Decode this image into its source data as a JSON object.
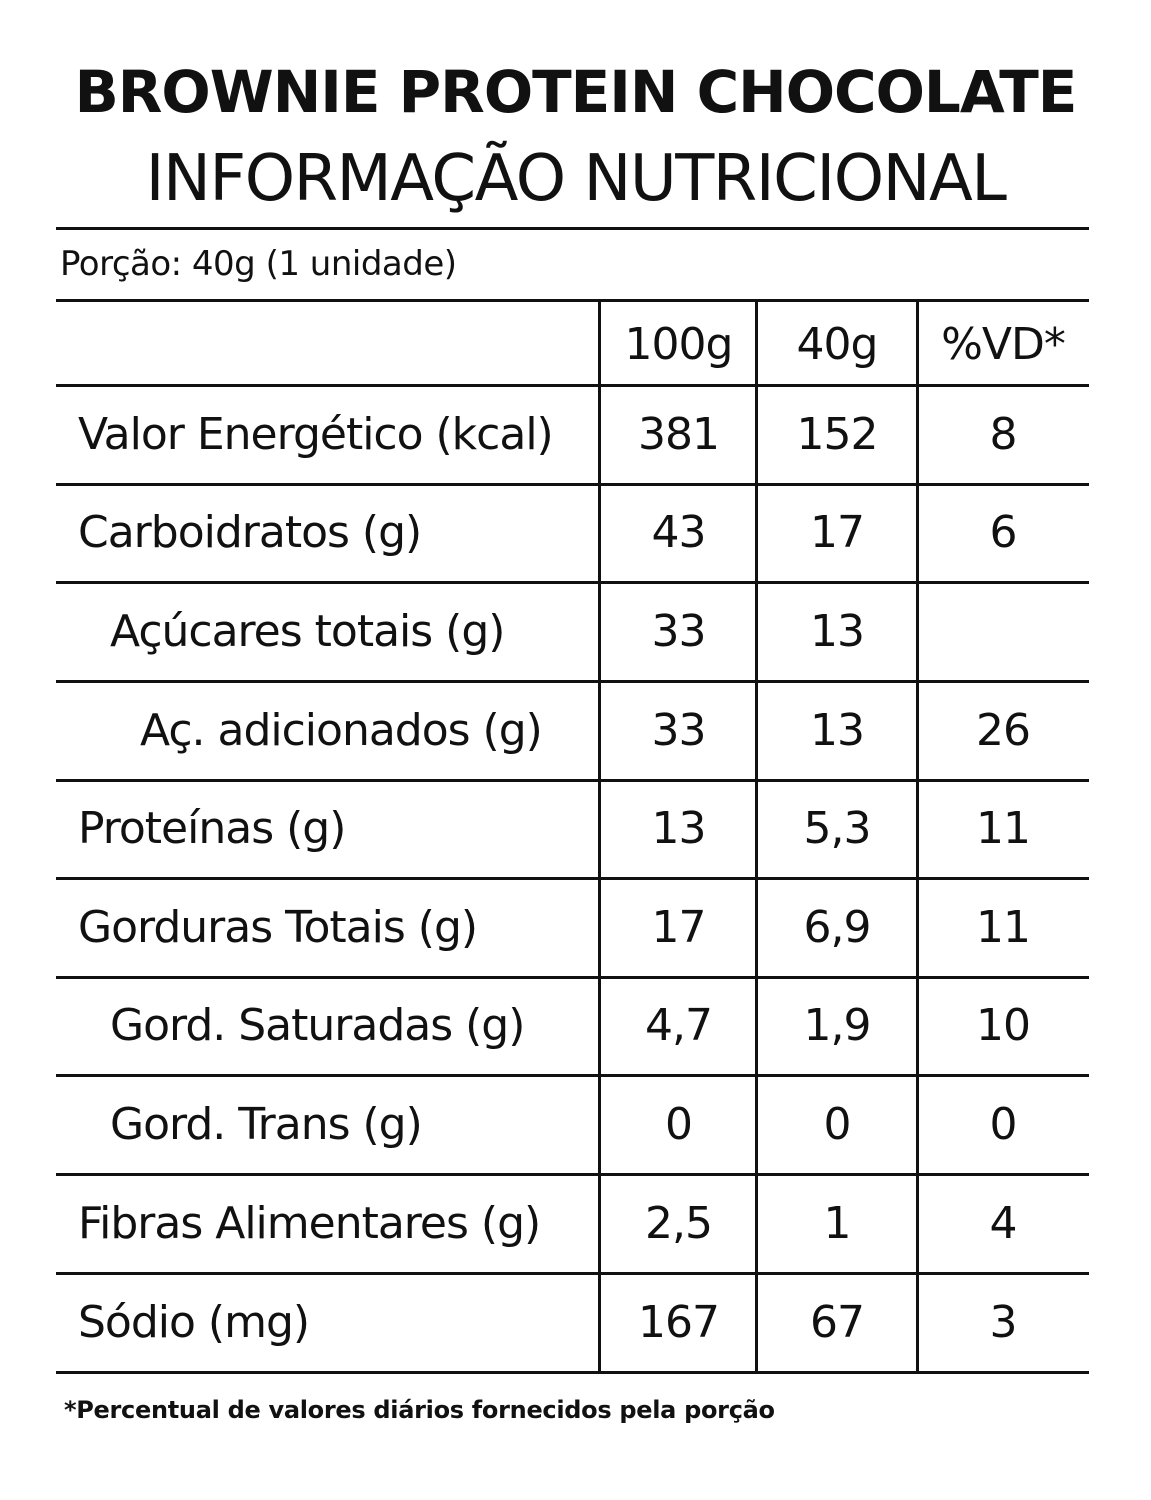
{
  "title": "BROWNIE PROTEIN CHOCOLATE",
  "subtitle": "INFORMAÇÃO NUTRICIONAL",
  "portion": "Porção: 40g (1 unidade)",
  "columns": [
    "100g",
    "40g",
    "%VD*"
  ],
  "rows": [
    {
      "label": "Valor Energético (kcal)",
      "indent": 0,
      "per100g": "381",
      "per40g": "152",
      "vd": "8"
    },
    {
      "label": "Carboidratos (g)",
      "indent": 0,
      "per100g": "43",
      "per40g": "17",
      "vd": "6"
    },
    {
      "label": "Açúcares totais (g)",
      "indent": 1,
      "per100g": "33",
      "per40g": "13",
      "vd": ""
    },
    {
      "label": "Aç. adicionados (g)",
      "indent": 2,
      "per100g": "33",
      "per40g": "13",
      "vd": "26"
    },
    {
      "label": "Proteínas (g)",
      "indent": 0,
      "per100g": "13",
      "per40g": "5,3",
      "vd": "11"
    },
    {
      "label": "Gorduras Totais (g)",
      "indent": 0,
      "per100g": "17",
      "per40g": "6,9",
      "vd": "11"
    },
    {
      "label": "Gord. Saturadas (g)",
      "indent": 1,
      "per100g": "4,7",
      "per40g": "1,9",
      "vd": "10"
    },
    {
      "label": "Gord. Trans (g)",
      "indent": 1,
      "per100g": "0",
      "per40g": "0",
      "vd": "0"
    },
    {
      "label": "Fibras Alimentares (g)",
      "indent": 0,
      "per100g": "2,5",
      "per40g": "1",
      "vd": "4"
    },
    {
      "label": "Sódio (mg)",
      "indent": 0,
      "per100g": "167",
      "per40g": "67",
      "vd": "3"
    }
  ],
  "footnote": "*Percentual de valores diários fornecidos pela porção",
  "colors": {
    "text": "#111111",
    "background": "#ffffff",
    "rule": "#111111"
  }
}
